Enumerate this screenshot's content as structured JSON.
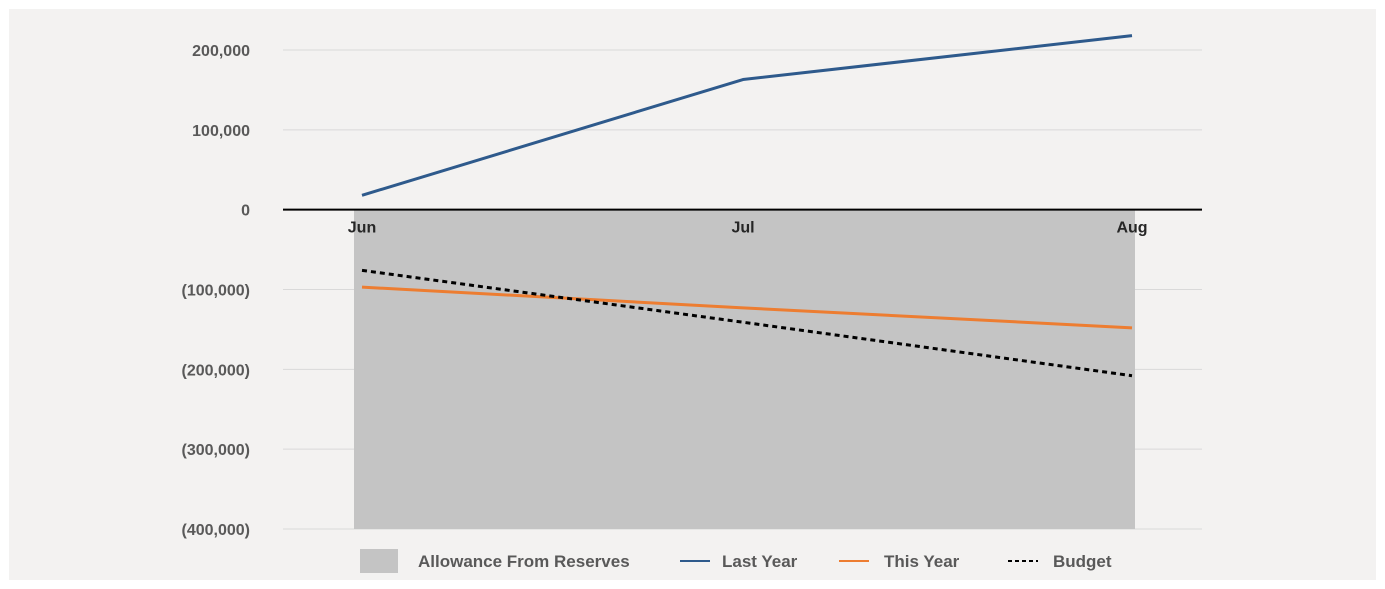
{
  "chart_data": {
    "type": "line",
    "categories": [
      "Jun",
      "Jul",
      "Aug"
    ],
    "y_ticks": [
      "200,000",
      "100,000",
      "0",
      "(100,000)",
      "(200,000)",
      "(300,000)",
      "(400,000)"
    ],
    "ylim": [
      -400000,
      200000
    ],
    "grid": true,
    "legend_placement": "bottom",
    "series": [
      {
        "name": "Allowance From Reserves",
        "kind": "area",
        "color": "#c4c4c4",
        "values": [
          -400000,
          -400000,
          -400000
        ]
      },
      {
        "name": "Last Year",
        "kind": "line",
        "color": "#2e5a8c",
        "dash": "solid",
        "values": [
          18000,
          163000,
          218000
        ]
      },
      {
        "name": "This Year",
        "kind": "line",
        "color": "#ed7d31",
        "dash": "solid",
        "values": [
          -97000,
          -123000,
          -148000
        ]
      },
      {
        "name": "Budget",
        "kind": "line",
        "color": "#000000",
        "dash": "dotted",
        "values": [
          -76000,
          -141000,
          -208000
        ]
      }
    ]
  }
}
